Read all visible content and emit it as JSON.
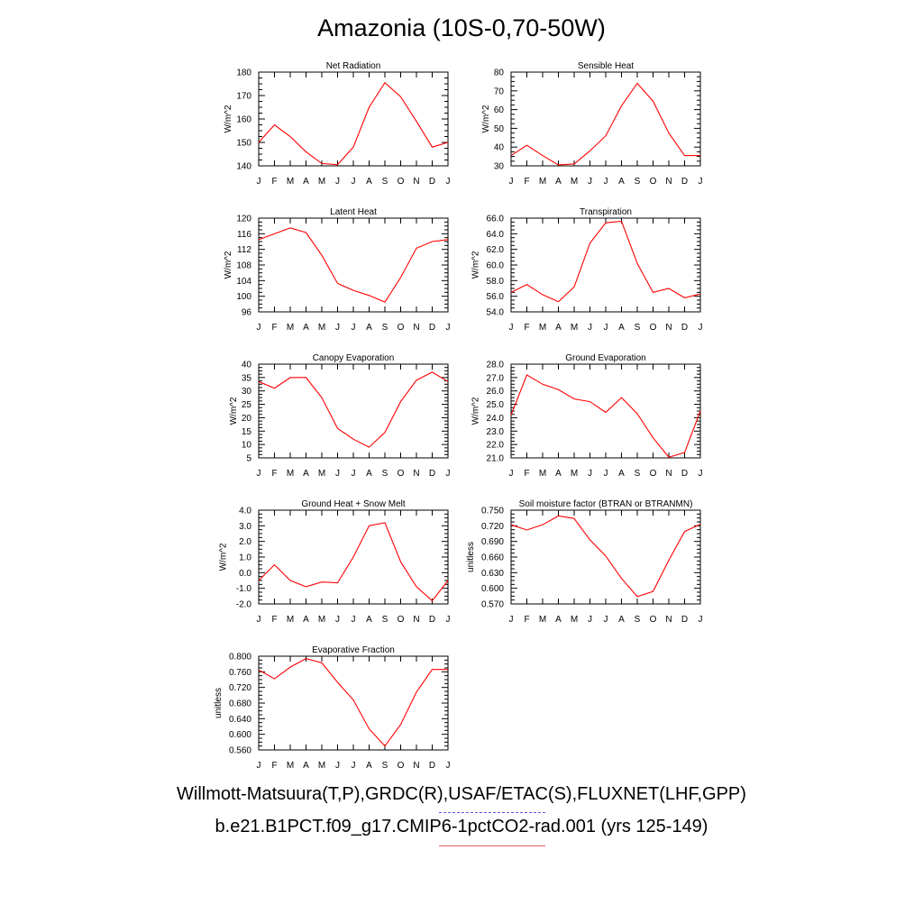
{
  "title": "Amazonia (10S-0,70-50W)",
  "legend": {
    "obs": "Willmott-Matsuura(T,P),GRDC(R),USAF/ETAC(S),FLUXNET(LHF,GPP)",
    "model": "b.e21.B1PCT.f09_g17.CMIP6-1pctCO2-rad.001 (yrs 125-149)",
    "obs_color": "#4444ee",
    "model_color": "#ff0000"
  },
  "chart_data": [
    {
      "id": "net-radiation",
      "type": "line",
      "title": "Net Radiation",
      "ylabel": "W/m^2",
      "categories": [
        "J",
        "F",
        "M",
        "A",
        "M",
        "J",
        "J",
        "A",
        "S",
        "O",
        "N",
        "D",
        "J"
      ],
      "ylim": [
        140,
        180
      ],
      "yticks": [
        "140",
        "150",
        "160",
        "170",
        "180"
      ],
      "values": [
        150,
        157.5,
        152.5,
        146,
        141,
        140.5,
        148,
        165,
        175.5,
        169.5,
        159,
        148,
        150
      ]
    },
    {
      "id": "sensible-heat",
      "type": "line",
      "title": "Sensible Heat",
      "ylabel": "W/m^2",
      "categories": [
        "J",
        "F",
        "M",
        "A",
        "M",
        "J",
        "J",
        "A",
        "S",
        "O",
        "N",
        "D",
        "J"
      ],
      "ylim": [
        30,
        80
      ],
      "yticks": [
        "30",
        "40",
        "50",
        "60",
        "70",
        "80"
      ],
      "values": [
        35.5,
        41,
        35.5,
        30.5,
        31,
        38,
        46,
        62,
        74,
        64.5,
        47.5,
        35.5,
        35.5
      ]
    },
    {
      "id": "latent-heat",
      "type": "line",
      "title": "Latent Heat",
      "ylabel": "W/m^2",
      "categories": [
        "J",
        "F",
        "M",
        "A",
        "M",
        "J",
        "J",
        "A",
        "S",
        "O",
        "N",
        "D",
        "J"
      ],
      "ylim": [
        96,
        120
      ],
      "yticks": [
        "96",
        "100",
        "104",
        "108",
        "112",
        "116",
        "120"
      ],
      "values": [
        114.5,
        116,
        117.5,
        116.3,
        110.5,
        103.3,
        101.5,
        100.2,
        98.5,
        104.8,
        112.3,
        114,
        114.5
      ]
    },
    {
      "id": "transpiration",
      "type": "line",
      "title": "Transpiration",
      "ylabel": "W/m^2",
      "categories": [
        "J",
        "F",
        "M",
        "A",
        "M",
        "J",
        "J",
        "A",
        "S",
        "O",
        "N",
        "D",
        "J"
      ],
      "ylim": [
        54,
        66
      ],
      "yticks": [
        "54.0",
        "56.0",
        "58.0",
        "60.0",
        "62.0",
        "64.0",
        "66.0"
      ],
      "values": [
        56.5,
        57.5,
        56.2,
        55.3,
        57.2,
        62.8,
        65.4,
        65.6,
        60.2,
        56.5,
        57,
        55.8,
        56.3
      ]
    },
    {
      "id": "canopy-evaporation",
      "type": "line",
      "title": "Canopy Evaporation",
      "ylabel": "W/m^2",
      "categories": [
        "J",
        "F",
        "M",
        "A",
        "M",
        "J",
        "J",
        "A",
        "S",
        "O",
        "N",
        "D",
        "J"
      ],
      "ylim": [
        5,
        40
      ],
      "yticks": [
        "5",
        "10",
        "15",
        "20",
        "25",
        "30",
        "35",
        "40"
      ],
      "values": [
        33.5,
        31,
        35,
        35,
        27.5,
        16,
        12,
        9,
        14.5,
        26,
        34,
        37,
        33.5
      ]
    },
    {
      "id": "ground-evaporation",
      "type": "line",
      "title": "Ground Evaporation",
      "ylabel": "W/m^2",
      "categories": [
        "J",
        "F",
        "M",
        "A",
        "M",
        "J",
        "J",
        "A",
        "S",
        "O",
        "N",
        "D",
        "J"
      ],
      "ylim": [
        21,
        28
      ],
      "yticks": [
        "21.0",
        "22.0",
        "23.0",
        "24.0",
        "25.0",
        "26.0",
        "27.0",
        "28.0"
      ],
      "values": [
        24.2,
        27.2,
        26.5,
        26.1,
        25.4,
        25.2,
        24.4,
        25.5,
        24.3,
        22.5,
        21.05,
        21.4,
        24.5
      ]
    },
    {
      "id": "ground-heat-snow-melt",
      "type": "line",
      "title": "Ground Heat + Snow Melt",
      "ylabel": "W/m^2",
      "categories": [
        "J",
        "F",
        "M",
        "A",
        "M",
        "J",
        "J",
        "A",
        "S",
        "O",
        "N",
        "D",
        "J"
      ],
      "ylim": [
        -2,
        4
      ],
      "yticks": [
        "-2.0",
        "-1.0",
        "0.0",
        "1.0",
        "2.0",
        "3.0",
        "4.0"
      ],
      "values": [
        -0.5,
        0.5,
        -0.5,
        -0.9,
        -0.6,
        -0.65,
        1,
        3,
        3.2,
        0.7,
        -0.9,
        -1.8,
        -0.5
      ]
    },
    {
      "id": "soil-moisture-factor",
      "type": "line",
      "title": "Soil moisture factor (BTRAN or BTRANMN)",
      "ylabel": "unitless",
      "categories": [
        "J",
        "F",
        "M",
        "A",
        "M",
        "J",
        "J",
        "A",
        "S",
        "O",
        "N",
        "D",
        "J"
      ],
      "ylim": [
        0.57,
        0.75
      ],
      "yticks": [
        "0.570",
        "0.600",
        "0.630",
        "0.660",
        "0.690",
        "0.720",
        "0.750"
      ],
      "values": [
        0.722,
        0.712,
        0.722,
        0.739,
        0.734,
        0.693,
        0.662,
        0.619,
        0.584,
        0.594,
        0.654,
        0.709,
        0.723
      ]
    },
    {
      "id": "evaporative-fraction",
      "type": "line",
      "title": "Evaporative Fraction",
      "ylabel": "unitless",
      "categories": [
        "J",
        "F",
        "M",
        "A",
        "M",
        "J",
        "J",
        "A",
        "S",
        "O",
        "N",
        "D",
        "J"
      ],
      "ylim": [
        0.56,
        0.8
      ],
      "yticks": [
        "0.560",
        "0.600",
        "0.640",
        "0.680",
        "0.720",
        "0.760",
        "0.800"
      ],
      "values": [
        0.765,
        0.742,
        0.772,
        0.794,
        0.783,
        0.733,
        0.688,
        0.614,
        0.57,
        0.625,
        0.708,
        0.766,
        0.766
      ]
    }
  ]
}
